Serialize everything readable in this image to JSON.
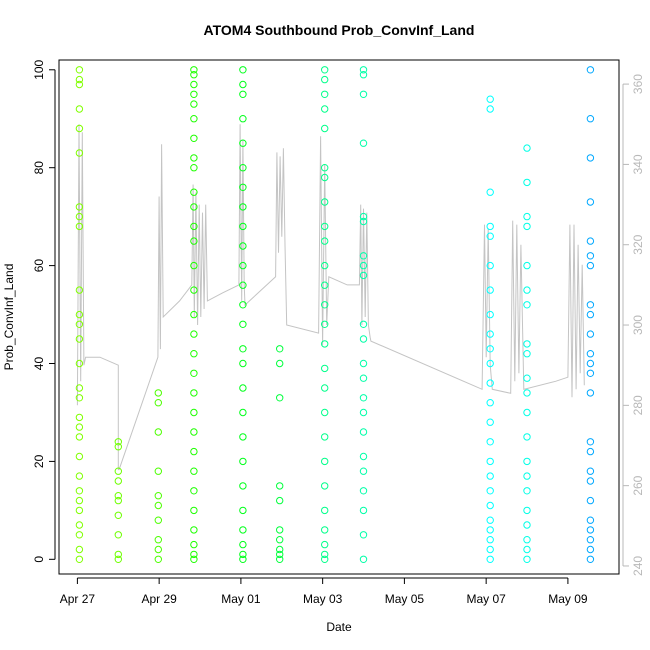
{
  "chart_data": {
    "type": "scatter",
    "title": "ATOM4 Southbound Prob_ConvInf_Land",
    "xlabel": "Date",
    "ylabel": "Prob_ConvInf_Land",
    "x_unit": "days since Apr 27",
    "xlim": [
      -0.45,
      13.25
    ],
    "ylim": [
      -3,
      102
    ],
    "x_ticks": [
      {
        "value": 0,
        "label": "Apr 27"
      },
      {
        "value": 2,
        "label": "Apr 29"
      },
      {
        "value": 4,
        "label": "May 01"
      },
      {
        "value": 6,
        "label": "May 03"
      },
      {
        "value": 8,
        "label": "May 05"
      },
      {
        "value": 10,
        "label": "May 07"
      },
      {
        "value": 12,
        "label": "May 09"
      }
    ],
    "y_ticks": [
      {
        "value": 0,
        "label": "0"
      },
      {
        "value": 20,
        "label": "20"
      },
      {
        "value": 40,
        "label": "40"
      },
      {
        "value": 60,
        "label": "60"
      },
      {
        "value": 80,
        "label": "80"
      },
      {
        "value": 100,
        "label": "100"
      }
    ],
    "secondary_axis": {
      "ylim": [
        238,
        366
      ],
      "ticks": [
        {
          "value": 240,
          "label": "240"
        },
        {
          "value": 260,
          "label": "260"
        },
        {
          "value": 280,
          "label": "280"
        },
        {
          "value": 300,
          "label": "300"
        },
        {
          "value": 320,
          "label": "320"
        },
        {
          "value": 340,
          "label": "340"
        },
        {
          "value": 360,
          "label": "360"
        }
      ],
      "line_color": "#c4c4c4",
      "line_points": [
        [
          0.0,
          280
        ],
        [
          0.04,
          350
        ],
        [
          0.08,
          286
        ],
        [
          0.12,
          348
        ],
        [
          0.16,
          290
        ],
        [
          0.2,
          292
        ],
        [
          0.55,
          292
        ],
        [
          1.0,
          290
        ],
        [
          1.0,
          264
        ],
        [
          1.02,
          264
        ],
        [
          1.97,
          292
        ],
        [
          2.0,
          332
        ],
        [
          2.03,
          294
        ],
        [
          2.06,
          345
        ],
        [
          2.1,
          302
        ],
        [
          2.5,
          306
        ],
        [
          2.8,
          310
        ],
        [
          2.83,
          335
        ],
        [
          2.86,
          302
        ],
        [
          2.9,
          333
        ],
        [
          2.94,
          300
        ],
        [
          2.98,
          330
        ],
        [
          3.02,
          302
        ],
        [
          3.06,
          328
        ],
        [
          3.1,
          304
        ],
        [
          3.14,
          330
        ],
        [
          3.18,
          306
        ],
        [
          3.55,
          308
        ],
        [
          3.95,
          310
        ],
        [
          3.98,
          350
        ],
        [
          4.02,
          306
        ],
        [
          4.05,
          346
        ],
        [
          4.08,
          310
        ],
        [
          4.1,
          305
        ],
        [
          4.85,
          312
        ],
        [
          4.88,
          343
        ],
        [
          4.92,
          318
        ],
        [
          4.96,
          342
        ],
        [
          5.0,
          322
        ],
        [
          5.04,
          344
        ],
        [
          5.08,
          320
        ],
        [
          5.12,
          300
        ],
        [
          5.9,
          298
        ],
        [
          5.95,
          347
        ],
        [
          6.0,
          295
        ],
        [
          6.05,
          340
        ],
        [
          6.1,
          300
        ],
        [
          6.15,
          312
        ],
        [
          6.6,
          310
        ],
        [
          6.9,
          310
        ],
        [
          6.93,
          330
        ],
        [
          6.96,
          300
        ],
        [
          7.0,
          329
        ],
        [
          7.04,
          302
        ],
        [
          7.08,
          328
        ],
        [
          7.12,
          300
        ],
        [
          7.16,
          297
        ],
        [
          7.18,
          296
        ],
        [
          9.9,
          284
        ],
        [
          9.96,
          325
        ],
        [
          10.0,
          292
        ],
        [
          10.05,
          324
        ],
        [
          10.1,
          290
        ],
        [
          10.15,
          284
        ],
        [
          10.6,
          283
        ],
        [
          10.65,
          326
        ],
        [
          10.7,
          286
        ],
        [
          10.75,
          325
        ],
        [
          10.8,
          288
        ],
        [
          10.85,
          320
        ],
        [
          10.92,
          284
        ],
        [
          11.7,
          286
        ],
        [
          12.0,
          287
        ],
        [
          12.05,
          325
        ],
        [
          12.1,
          282
        ],
        [
          12.15,
          325
        ],
        [
          12.2,
          284
        ],
        [
          12.25,
          320
        ],
        [
          12.3,
          288
        ],
        [
          12.35,
          315
        ],
        [
          12.4,
          285
        ]
      ]
    },
    "color_scale": "rainbow by date (yellow-green at Apr 27 through green, teal, cyan to blue at May 09)",
    "series": [
      {
        "name": "points",
        "x": [
          0.05,
          0.05,
          0.05,
          0.05,
          0.05,
          0.05,
          0.05,
          0.05,
          0.05,
          0.05,
          0.05,
          0.05,
          0.05,
          0.05,
          0.05,
          0.05,
          0.05,
          0.05,
          0.05,
          0.05,
          0.05,
          0.05,
          0.05,
          0.05,
          0.05,
          0.05,
          0.05,
          0.05,
          1.0,
          1.0,
          1.0,
          1.0,
          1.0,
          1.0,
          1.0,
          1.0,
          1.0,
          1.0,
          1.98,
          1.98,
          1.98,
          1.98,
          1.98,
          1.98,
          1.98,
          1.98,
          1.98,
          1.98,
          2.85,
          2.85,
          2.85,
          2.85,
          2.85,
          2.85,
          2.85,
          2.85,
          2.85,
          2.85,
          2.85,
          2.85,
          2.85,
          2.85,
          2.85,
          2.85,
          2.85,
          2.85,
          2.85,
          2.85,
          2.85,
          2.85,
          2.85,
          2.85,
          2.85,
          2.85,
          2.85,
          2.85,
          2.85,
          2.85,
          4.05,
          4.05,
          4.05,
          4.05,
          4.05,
          4.05,
          4.05,
          4.05,
          4.05,
          4.05,
          4.05,
          4.05,
          4.05,
          4.05,
          4.05,
          4.05,
          4.05,
          4.05,
          4.05,
          4.05,
          4.05,
          4.05,
          4.05,
          4.05,
          4.05,
          4.05,
          4.95,
          4.95,
          4.95,
          4.95,
          4.95,
          4.95,
          4.95,
          4.95,
          4.95,
          4.95,
          6.05,
          6.05,
          6.05,
          6.05,
          6.05,
          6.05,
          6.05,
          6.05,
          6.05,
          6.05,
          6.05,
          6.05,
          6.05,
          6.05,
          6.05,
          6.05,
          6.05,
          6.05,
          6.05,
          6.05,
          6.05,
          6.05,
          6.05,
          6.05,
          6.05,
          6.05,
          7.0,
          7.0,
          7.0,
          7.0,
          7.0,
          7.0,
          7.0,
          7.0,
          7.0,
          7.0,
          7.0,
          7.0,
          7.0,
          7.0,
          7.0,
          7.0,
          7.0,
          7.0,
          7.0,
          7.0,
          7.0,
          7.0,
          10.1,
          10.1,
          10.1,
          10.1,
          10.1,
          10.1,
          10.1,
          10.1,
          10.1,
          10.1,
          10.1,
          10.1,
          10.1,
          10.1,
          10.1,
          10.1,
          10.1,
          10.1,
          10.1,
          10.1,
          10.1,
          10.1,
          10.1,
          10.1,
          11.0,
          11.0,
          11.0,
          11.0,
          11.0,
          11.0,
          11.0,
          11.0,
          11.0,
          11.0,
          11.0,
          11.0,
          11.0,
          11.0,
          11.0,
          11.0,
          11.0,
          11.0,
          11.0,
          11.0,
          11.0,
          12.55,
          12.55,
          12.55,
          12.55,
          12.55,
          12.55,
          12.55,
          12.55,
          12.55,
          12.55,
          12.55,
          12.55,
          12.55,
          12.55,
          12.55,
          12.55,
          12.55,
          12.55,
          12.55,
          12.55,
          12.55,
          12.55,
          12.55,
          12.55
        ],
        "y": [
          100,
          98,
          97,
          92,
          88,
          83,
          72,
          70,
          68,
          55,
          50,
          48,
          45,
          40,
          35,
          33,
          29,
          27,
          25,
          21,
          17,
          14,
          12,
          10,
          7,
          5,
          2,
          0,
          24,
          23,
          18,
          16,
          13,
          12,
          9,
          5,
          1,
          0,
          34,
          32,
          26,
          18,
          13,
          11,
          8,
          4,
          2,
          0,
          100,
          99,
          97,
          95,
          93,
          90,
          86,
          82,
          80,
          75,
          72,
          68,
          65,
          60,
          55,
          50,
          46,
          42,
          38,
          34,
          30,
          26,
          22,
          18,
          14,
          10,
          6,
          3,
          1,
          0,
          100,
          97,
          95,
          90,
          85,
          80,
          76,
          72,
          68,
          64,
          60,
          56,
          52,
          48,
          43,
          40,
          35,
          30,
          25,
          20,
          15,
          10,
          6,
          3,
          1,
          0,
          43,
          40,
          33,
          15,
          12,
          6,
          4,
          2,
          1,
          0,
          100,
          98,
          95,
          92,
          88,
          80,
          78,
          73,
          68,
          65,
          60,
          56,
          52,
          48,
          44,
          39,
          35,
          30,
          25,
          20,
          15,
          10,
          6,
          3,
          1,
          0,
          100,
          99,
          95,
          85,
          70,
          69,
          62,
          60,
          58,
          48,
          45,
          40,
          37,
          33,
          30,
          26,
          21,
          18,
          14,
          10,
          5,
          0,
          94,
          92,
          75,
          68,
          66,
          60,
          55,
          50,
          46,
          43,
          40,
          36,
          32,
          28,
          24,
          20,
          17,
          14,
          11,
          8,
          6,
          4,
          2,
          0,
          84,
          77,
          70,
          68,
          60,
          55,
          52,
          44,
          42,
          37,
          34,
          30,
          25,
          20,
          17,
          14,
          10,
          7,
          4,
          2,
          0,
          100,
          90,
          82,
          73,
          65,
          62,
          60,
          52,
          50,
          46,
          42,
          40,
          38,
          34,
          24,
          22,
          18,
          16,
          12,
          8,
          6,
          4,
          2,
          0
        ]
      }
    ],
    "point_colors": [
      "#80ff00",
      "#80ff00",
      "#80ff00",
      "#80ff00",
      "#80ff00",
      "#80ff00",
      "#80ff00",
      "#80ff00",
      "#80ff00",
      "#80ff00",
      "#80ff00",
      "#80ff00",
      "#80ff00",
      "#80ff00",
      "#80ff00",
      "#80ff00",
      "#80ff00",
      "#80ff00",
      "#80ff00",
      "#80ff00",
      "#80ff00",
      "#80ff00",
      "#80ff00",
      "#80ff00",
      "#80ff00",
      "#80ff00",
      "#80ff00",
      "#80ff00",
      "#6eff00",
      "#6eff00",
      "#6eff00",
      "#6eff00",
      "#6eff00",
      "#6eff00",
      "#6eff00",
      "#6eff00",
      "#6eff00",
      "#6eff00",
      "#4dff00",
      "#4dff00",
      "#4dff00",
      "#4dff00",
      "#4dff00",
      "#4dff00",
      "#4dff00",
      "#4dff00",
      "#4dff00",
      "#4dff00",
      "#1eff00",
      "#1eff00",
      "#1eff00",
      "#1eff00",
      "#1eff00",
      "#1eff00",
      "#1eff00",
      "#1eff00",
      "#1eff00",
      "#1eff00",
      "#1eff00",
      "#1eff00",
      "#1eff00",
      "#1eff00",
      "#1eff00",
      "#1eff00",
      "#1eff00",
      "#1eff00",
      "#1eff00",
      "#1eff00",
      "#1eff00",
      "#1eff00",
      "#1eff00",
      "#1eff00",
      "#1eff00",
      "#1eff00",
      "#1eff00",
      "#1eff00",
      "#1eff00",
      "#1eff00",
      "#00ff1a",
      "#00ff1a",
      "#00ff1a",
      "#00ff1a",
      "#00ff1a",
      "#00ff1a",
      "#00ff1a",
      "#00ff1a",
      "#00ff1a",
      "#00ff1a",
      "#00ff1a",
      "#00ff1a",
      "#00ff1a",
      "#00ff1a",
      "#00ff1a",
      "#00ff1a",
      "#00ff1a",
      "#00ff1a",
      "#00ff1a",
      "#00ff1a",
      "#00ff1a",
      "#00ff1a",
      "#00ff1a",
      "#00ff1a",
      "#00ff1a",
      "#00ff1a",
      "#00ff3c",
      "#00ff3c",
      "#00ff3c",
      "#00ff3c",
      "#00ff3c",
      "#00ff3c",
      "#00ff3c",
      "#00ff3c",
      "#00ff3c",
      "#00ff3c",
      "#00ff8a",
      "#00ff8a",
      "#00ff8a",
      "#00ff8a",
      "#00ff8a",
      "#00ff8a",
      "#00ff8a",
      "#00ff8a",
      "#00ff8a",
      "#00ff8a",
      "#00ff8a",
      "#00ff8a",
      "#00ff8a",
      "#00ff8a",
      "#00ff8a",
      "#00ff8a",
      "#00ff8a",
      "#00ff8a",
      "#00ff8a",
      "#00ff8a",
      "#00ff8a",
      "#00ff8a",
      "#00ff8a",
      "#00ff8a",
      "#00ff8a",
      "#00ff8a",
      "#00ffa8",
      "#00ffa8",
      "#00ffa8",
      "#00ffa8",
      "#00ffa8",
      "#00ffa8",
      "#00ffa8",
      "#00ffa8",
      "#00ffa8",
      "#00ffa8",
      "#00ffa8",
      "#00ffa8",
      "#00ffa8",
      "#00ffa8",
      "#00ffa8",
      "#00ffa8",
      "#00ffa8",
      "#00ffa8",
      "#00ffa8",
      "#00ffa8",
      "#00ffa8",
      "#00ffa8",
      "#00ffff",
      "#00ffff",
      "#00ffff",
      "#00ffff",
      "#00ffff",
      "#00ffff",
      "#00ffff",
      "#00ffff",
      "#00ffff",
      "#00ffff",
      "#00ffff",
      "#00ffff",
      "#00ffff",
      "#00ffff",
      "#00ffff",
      "#00ffff",
      "#00ffff",
      "#00ffff",
      "#00ffff",
      "#00ffff",
      "#00ffff",
      "#00ffff",
      "#00ffff",
      "#00ffff",
      "#00ffe6",
      "#00ffe6",
      "#00ffe6",
      "#00ffe6",
      "#00ffe6",
      "#00ffe6",
      "#00ffe6",
      "#00ffe6",
      "#00ffe6",
      "#00ffe6",
      "#00ffe6",
      "#00ffe6",
      "#00ffe6",
      "#00ffe6",
      "#00ffe6",
      "#00ffe6",
      "#00ffe6",
      "#00ffe6",
      "#00ffe6",
      "#00ffe6",
      "#00ffe6",
      "#00a8ff",
      "#00a8ff",
      "#00a8ff",
      "#00a8ff",
      "#00a8ff",
      "#00a8ff",
      "#00a8ff",
      "#00a8ff",
      "#00a8ff",
      "#00a8ff",
      "#00a8ff",
      "#00a8ff",
      "#00a8ff",
      "#00a8ff",
      "#00a8ff",
      "#00a8ff",
      "#00a8ff",
      "#00a8ff",
      "#00a8ff",
      "#00a8ff",
      "#00a8ff",
      "#00a8ff",
      "#00a8ff",
      "#00a8ff"
    ]
  }
}
